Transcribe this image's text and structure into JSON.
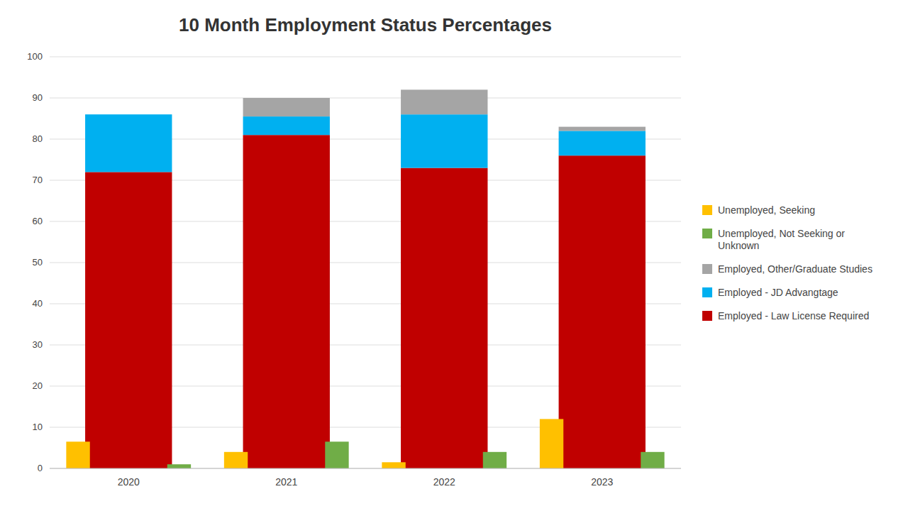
{
  "chart_data": {
    "type": "bar",
    "title": "10 Month Employment Status Percentages",
    "categories": [
      "2020",
      "2021",
      "2022",
      "2023"
    ],
    "series": [
      {
        "name": "Employed - Law License Required",
        "color": "#C00000",
        "stacked": true,
        "values": [
          72.0,
          81.0,
          73.0,
          76.0
        ]
      },
      {
        "name": "Employed - JD Advangtage",
        "color": "#00B0F0",
        "stacked": true,
        "values": [
          14.0,
          4.5,
          13.0,
          6.0
        ]
      },
      {
        "name": "Employed, Other/Graduate Studies",
        "color": "#A5A5A5",
        "stacked": true,
        "values": [
          0.0,
          4.5,
          6.0,
          1.0
        ]
      },
      {
        "name": "Unemployed, Seeking",
        "color": "#FFC000",
        "stacked": false,
        "values": [
          6.5,
          4.0,
          1.5,
          12.0
        ]
      },
      {
        "name": "Unemployed, Not Seeking or\nUnknown",
        "color": "#70AD47",
        "stacked": false,
        "values": [
          1.0,
          6.5,
          4.0,
          4.0
        ]
      }
    ],
    "ylim": [
      0,
      100
    ],
    "yticks": [
      0,
      10,
      20,
      30,
      40,
      50,
      60,
      70,
      80,
      90,
      100
    ],
    "grid": true,
    "legend": "right"
  }
}
